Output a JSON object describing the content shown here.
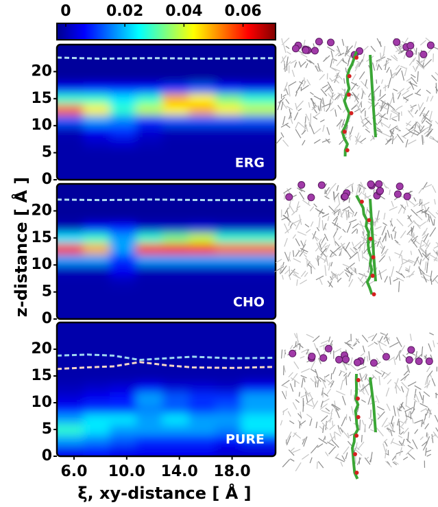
{
  "figure": {
    "xlabel": "ξ, xy-distance [ Å ]",
    "ylabel": "z-distance [ Å ]",
    "colorbar": {
      "lim": [
        -0.003,
        0.071
      ],
      "ticks": [
        0,
        0.02,
        0.04,
        0.06
      ]
    }
  },
  "chart_data": [
    {
      "type": "heatmap",
      "label": "ERG",
      "xlim": [
        4.7,
        21.3
      ],
      "ylim": [
        0,
        25
      ],
      "yticks": [
        0,
        5,
        10,
        15,
        20
      ],
      "x": [
        5.7,
        7.7,
        9.7,
        11.7,
        13.7,
        15.7,
        17.7,
        19.7
      ],
      "y": [
        1,
        3,
        5,
        7,
        9,
        11,
        13,
        15,
        17,
        19,
        21,
        23
      ],
      "z": [
        [
          0.003,
          0.003,
          0.003,
          0.003,
          0.003,
          0.003,
          0.003,
          0.003
        ],
        [
          0.003,
          0.003,
          0.003,
          0.003,
          0.003,
          0.003,
          0.003,
          0.003
        ],
        [
          0.003,
          0.003,
          0.003,
          0.003,
          0.003,
          0.003,
          0.003,
          0.003
        ],
        [
          0.003,
          0.005,
          0.006,
          0.004,
          0.003,
          0.003,
          0.003,
          0.003
        ],
        [
          0.004,
          0.008,
          0.012,
          0.006,
          0.004,
          0.004,
          0.004,
          0.004
        ],
        [
          0.015,
          0.02,
          0.018,
          0.012,
          0.015,
          0.015,
          0.015,
          0.015
        ],
        [
          0.055,
          0.045,
          0.03,
          0.04,
          0.045,
          0.05,
          0.045,
          0.04
        ],
        [
          0.03,
          0.03,
          0.025,
          0.03,
          0.05,
          0.045,
          0.035,
          0.03
        ],
        [
          0.008,
          0.01,
          0.01,
          0.01,
          0.012,
          0.015,
          0.01,
          0.008
        ],
        [
          0.002,
          0.002,
          0.002,
          0.002,
          0.002,
          0.002,
          0.002,
          0.002
        ],
        [
          0.002,
          0.002,
          0.002,
          0.002,
          0.002,
          0.002,
          0.002,
          0.002
        ],
        [
          0.002,
          0.002,
          0.002,
          0.002,
          0.002,
          0.002,
          0.002,
          0.002
        ]
      ],
      "series": [
        {
          "color": "#b0dcf2",
          "x": [
            4.7,
            8,
            12,
            16,
            21.3
          ],
          "values": [
            22.6,
            22.4,
            22.5,
            22.4,
            22.5
          ]
        }
      ]
    },
    {
      "type": "heatmap",
      "label": "CHO",
      "xlim": [
        4.7,
        21.3
      ],
      "ylim": [
        0,
        25
      ],
      "yticks": [
        0,
        5,
        10,
        15,
        20
      ],
      "x": [
        5.7,
        7.7,
        9.7,
        11.7,
        13.7,
        15.7,
        17.7,
        19.7
      ],
      "y": [
        1,
        3,
        5,
        7,
        9,
        11,
        13,
        15,
        17,
        19,
        21,
        23
      ],
      "z": [
        [
          0.003,
          0.003,
          0.003,
          0.003,
          0.003,
          0.003,
          0.003,
          0.003
        ],
        [
          0.003,
          0.003,
          0.003,
          0.003,
          0.003,
          0.003,
          0.003,
          0.003
        ],
        [
          0.003,
          0.003,
          0.003,
          0.003,
          0.003,
          0.003,
          0.003,
          0.003
        ],
        [
          0.003,
          0.003,
          0.004,
          0.003,
          0.003,
          0.003,
          0.003,
          0.003
        ],
        [
          0.004,
          0.004,
          0.008,
          0.004,
          0.004,
          0.004,
          0.004,
          0.004
        ],
        [
          0.02,
          0.02,
          0.012,
          0.02,
          0.02,
          0.02,
          0.02,
          0.02
        ],
        [
          0.06,
          0.05,
          0.02,
          0.06,
          0.062,
          0.06,
          0.055,
          0.055
        ],
        [
          0.025,
          0.03,
          0.02,
          0.03,
          0.035,
          0.04,
          0.03,
          0.03
        ],
        [
          0.004,
          0.008,
          0.01,
          0.005,
          0.005,
          0.006,
          0.005,
          0.005
        ],
        [
          0.002,
          0.002,
          0.002,
          0.002,
          0.002,
          0.002,
          0.002,
          0.002
        ],
        [
          0.002,
          0.002,
          0.002,
          0.002,
          0.002,
          0.002,
          0.002,
          0.002
        ],
        [
          0.002,
          0.002,
          0.002,
          0.002,
          0.002,
          0.002,
          0.002,
          0.002
        ]
      ],
      "series": [
        {
          "color": "#b0dcf2",
          "x": [
            4.7,
            8,
            12,
            16,
            21.3
          ],
          "values": [
            22.1,
            22.0,
            22.1,
            22.0,
            22.0
          ]
        }
      ]
    },
    {
      "type": "heatmap",
      "label": "PURE",
      "xlim": [
        4.7,
        21.3
      ],
      "ylim": [
        0,
        25
      ],
      "yticks": [
        0,
        5,
        10,
        15,
        20
      ],
      "xticks": [
        {
          "value": 6,
          "label": "6.0"
        },
        {
          "value": 10,
          "label": "10.0"
        },
        {
          "value": 14,
          "label": "14.0"
        },
        {
          "value": 18,
          "label": "18.0"
        }
      ],
      "x": [
        5.7,
        7.7,
        9.7,
        11.7,
        13.7,
        15.7,
        17.7,
        19.7
      ],
      "y": [
        1,
        3,
        5,
        7,
        9,
        11,
        13,
        15,
        17,
        19,
        21,
        23
      ],
      "z": [
        [
          0.008,
          0.01,
          0.008,
          0.008,
          0.008,
          0.008,
          0.006,
          0.006
        ],
        [
          0.02,
          0.018,
          0.015,
          0.012,
          0.012,
          0.012,
          0.01,
          0.012
        ],
        [
          0.03,
          0.025,
          0.02,
          0.02,
          0.02,
          0.02,
          0.018,
          0.025
        ],
        [
          0.02,
          0.025,
          0.025,
          0.02,
          0.025,
          0.02,
          0.02,
          0.025
        ],
        [
          0.01,
          0.012,
          0.012,
          0.018,
          0.015,
          0.012,
          0.015,
          0.02
        ],
        [
          0.006,
          0.008,
          0.01,
          0.02,
          0.015,
          0.012,
          0.012,
          0.02
        ],
        [
          0.004,
          0.005,
          0.006,
          0.008,
          0.006,
          0.006,
          0.005,
          0.008
        ],
        [
          0.003,
          0.003,
          0.003,
          0.003,
          0.003,
          0.003,
          0.003,
          0.003
        ],
        [
          0.003,
          0.003,
          0.003,
          0.003,
          0.003,
          0.003,
          0.003,
          0.003
        ],
        [
          0.003,
          0.003,
          0.003,
          0.003,
          0.003,
          0.003,
          0.003,
          0.003
        ],
        [
          0.003,
          0.003,
          0.003,
          0.003,
          0.003,
          0.003,
          0.003,
          0.003
        ],
        [
          0.003,
          0.003,
          0.003,
          0.003,
          0.003,
          0.003,
          0.003,
          0.003
        ]
      ],
      "series": [
        {
          "color": "#9fd6f0",
          "x": [
            4.7,
            7,
            9,
            11,
            13,
            15,
            18,
            21.3
          ],
          "values": [
            18.8,
            19,
            18.8,
            18,
            18.3,
            18.6,
            18.3,
            18.4
          ]
        },
        {
          "color": "#f5d6c6",
          "x": [
            4.7,
            7,
            9,
            11,
            13,
            15,
            18,
            21.3
          ],
          "values": [
            16.3,
            16.6,
            16.8,
            17.6,
            17,
            16.6,
            16.5,
            16.7
          ]
        }
      ]
    }
  ]
}
